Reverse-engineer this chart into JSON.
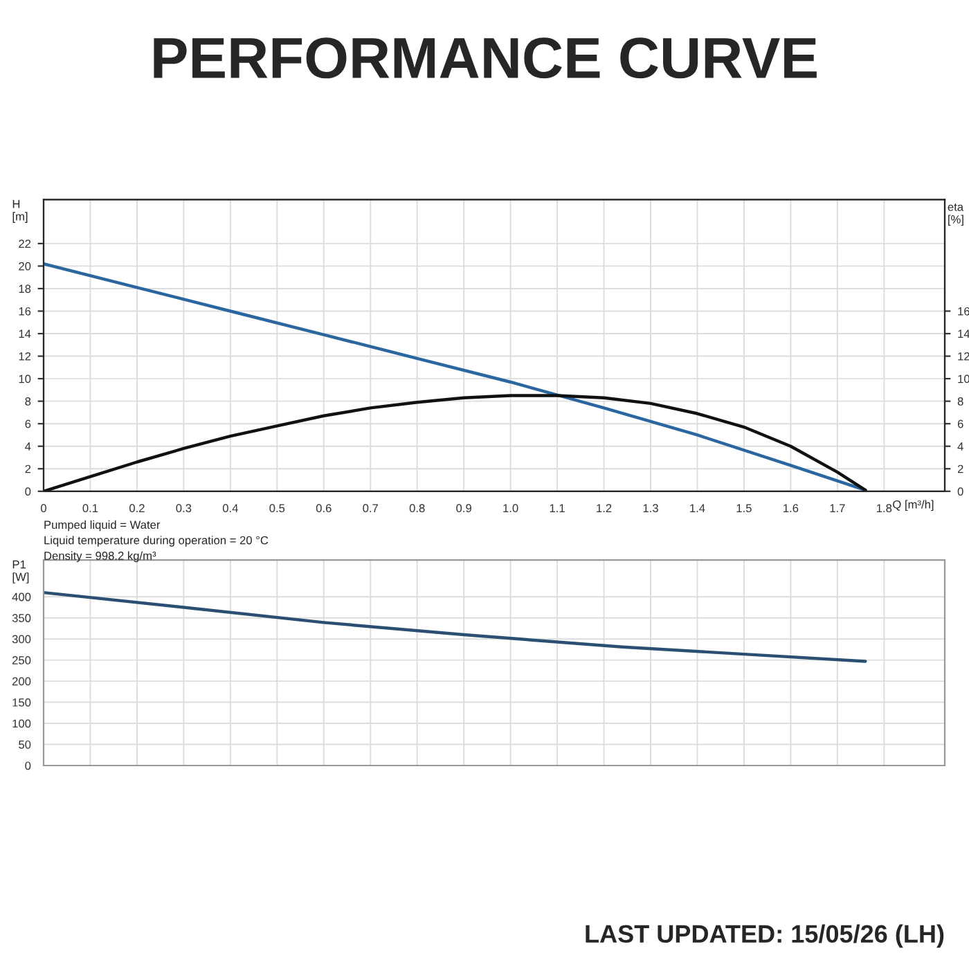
{
  "chart_data": [
    {
      "type": "line",
      "title": "PERFORMANCE CURVE",
      "xlabel": "Q [m³/h]",
      "ylabel": "H\n[m]",
      "y2label": "eta\n[%]",
      "annotations": [
        "Pumped liquid = Water",
        "Liquid temperature during operation = 20 °C",
        "Density = 998.2 kg/m³"
      ],
      "series": [
        {
          "color": "#2a66a0",
          "axis": "y",
          "x": [
            0,
            0.2,
            0.4,
            0.6,
            0.8,
            1.0,
            1.2,
            1.4,
            1.6,
            1.76
          ],
          "values": [
            20.2,
            18.1,
            16.0,
            13.9,
            11.8,
            9.7,
            7.4,
            5.0,
            2.3,
            0.1
          ]
        },
        {
          "color": "#111111",
          "axis": "y2",
          "x": [
            0,
            0.1,
            0.2,
            0.3,
            0.4,
            0.5,
            0.6,
            0.7,
            0.8,
            0.9,
            1.0,
            1.1,
            1.2,
            1.3,
            1.4,
            1.5,
            1.6,
            1.7,
            1.76
          ],
          "values": [
            0,
            1.3,
            2.6,
            3.8,
            4.9,
            5.8,
            6.7,
            7.4,
            7.9,
            8.3,
            8.5,
            8.5,
            8.3,
            7.8,
            6.9,
            5.7,
            4.0,
            1.7,
            0.1
          ]
        }
      ],
      "xlim": [
        0,
        1.93
      ],
      "xticks": [
        0,
        0.1,
        0.2,
        0.3,
        0.4,
        0.5,
        0.6,
        0.7,
        0.8,
        0.9,
        {
          "value": 1.0,
          "label": "1.0"
        },
        1.1,
        1.2,
        1.3,
        1.4,
        1.5,
        1.6,
        1.7,
        1.8
      ],
      "ylim": [
        0,
        25.9
      ],
      "yticks": [
        0,
        2,
        4,
        6,
        8,
        10,
        12,
        14,
        16,
        18,
        20,
        22
      ],
      "y2lim": [
        0,
        25.9
      ],
      "y2ticks": [
        0,
        2,
        4,
        6,
        8,
        10,
        12,
        14,
        16
      ],
      "grid": true,
      "legend": false,
      "marker": "none",
      "line_style": "solid"
    },
    {
      "type": "line",
      "ylabel": "P1\n[W]",
      "annotations": [
        "LAST UPDATED: 15/05/26 (LH)"
      ],
      "series": [
        {
          "color": "#2b4f72",
          "x": [
            0,
            0.3,
            0.6,
            0.9,
            1.24,
            1.5,
            1.76
          ],
          "values": [
            410,
            375,
            339,
            310,
            281,
            264,
            247
          ]
        }
      ],
      "xlim": [
        0,
        1.93
      ],
      "xticks": [
        {
          "value": 0,
          "label": null
        },
        {
          "value": 0.1,
          "label": null
        },
        {
          "value": 0.2,
          "label": null
        },
        {
          "value": 0.3,
          "label": null
        },
        {
          "value": 0.4,
          "label": null
        },
        {
          "value": 0.5,
          "label": null
        },
        {
          "value": 0.6,
          "label": null
        },
        {
          "value": 0.7,
          "label": null
        },
        {
          "value": 0.8,
          "label": null
        },
        {
          "value": 0.9,
          "label": null
        },
        {
          "value": 1.0,
          "label": null
        },
        {
          "value": 1.1,
          "label": null
        },
        {
          "value": 1.2,
          "label": null
        },
        {
          "value": 1.3,
          "label": null
        },
        {
          "value": 1.4,
          "label": null
        },
        {
          "value": 1.5,
          "label": null
        },
        {
          "value": 1.6,
          "label": null
        },
        {
          "value": 1.7,
          "label": null
        },
        {
          "value": 1.8,
          "label": null
        }
      ],
      "ylim": [
        0,
        487
      ],
      "yticks": [
        0,
        50,
        100,
        150,
        200,
        250,
        300,
        350,
        400
      ],
      "tick_labels": "y",
      "grid": true,
      "legend": false,
      "marker": "none",
      "line_style": "solid"
    }
  ]
}
